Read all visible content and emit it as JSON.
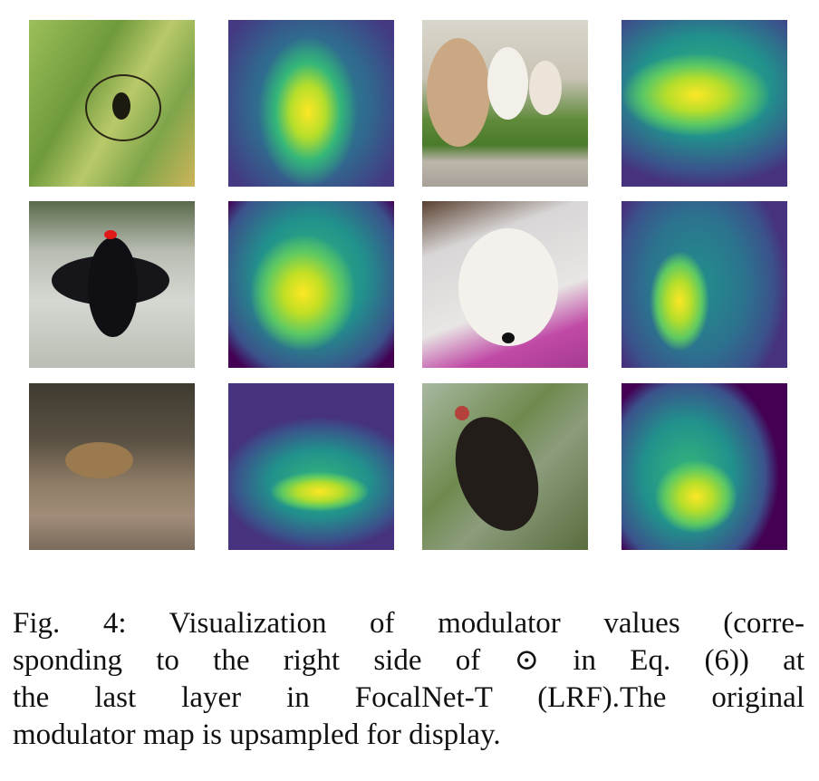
{
  "caption": {
    "lines": [
      "Fig. 4: Visualization of modulator values (corre-",
      "sponding to the right side of ⊙ in Eq. (6)) at",
      "the last layer in FocalNet-T (LRF).The original",
      "modulator map is upsampled for display."
    ]
  }
}
